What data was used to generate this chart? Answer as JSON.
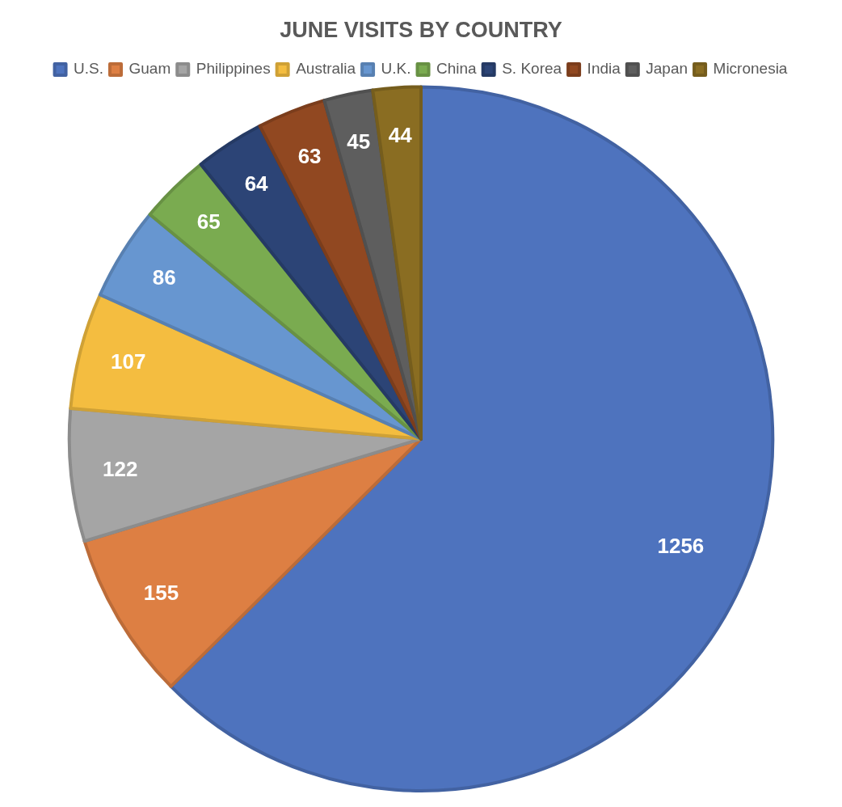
{
  "chart_data": {
    "type": "pie",
    "title": "JUNE VISITS BY COUNTRY",
    "categories": [
      "U.S.",
      "Guam",
      "Philippines",
      "Australia",
      "U.K.",
      "China",
      "S. Korea",
      "India",
      "Japan",
      "Micronesia"
    ],
    "values": [
      1256,
      155,
      122,
      107,
      86,
      65,
      64,
      63,
      45,
      44
    ],
    "colors": [
      "#4e73be",
      "#dd7f43",
      "#a5a5a5",
      "#f4bd40",
      "#6796d0",
      "#7aab50",
      "#2c4476",
      "#914821",
      "#5e5e5e",
      "#8a6d22"
    ],
    "data_labels": true,
    "legend": "top"
  }
}
